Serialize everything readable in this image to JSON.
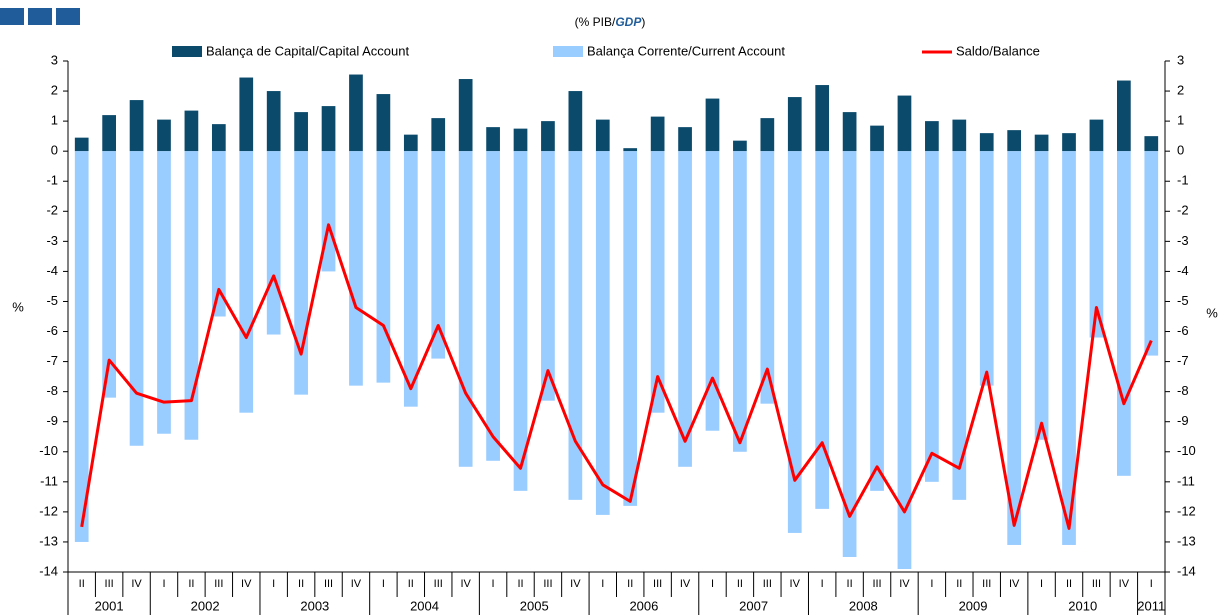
{
  "chart_data": {
    "type": "bar-line",
    "title_parts": [
      "(% PIB/",
      "GDP",
      ")"
    ],
    "y_label": "%",
    "y2_label": "%",
    "categories": [
      "II",
      "III",
      "IV",
      "I",
      "II",
      "III",
      "IV",
      "I",
      "II",
      "III",
      "IV",
      "I",
      "II",
      "III",
      "IV",
      "I",
      "II",
      "III",
      "IV",
      "I",
      "II",
      "III",
      "IV",
      "I",
      "II",
      "III",
      "IV",
      "I",
      "II",
      "III",
      "IV",
      "I",
      "II",
      "III",
      "IV",
      "I",
      "II",
      "III",
      "IV",
      "I"
    ],
    "year_labels": [
      "2001",
      "2002",
      "2003",
      "2004",
      "2005",
      "2006",
      "2007",
      "2008",
      "2009",
      "2010",
      "2011"
    ],
    "series": [
      {
        "name": "Balança de Capital/Capital Account",
        "type": "bar",
        "color": "#0b4a6b",
        "values": [
          0.45,
          1.2,
          1.7,
          1.05,
          1.35,
          0.9,
          2.45,
          2.0,
          1.3,
          1.5,
          2.55,
          1.9,
          0.55,
          1.1,
          2.4,
          0.8,
          0.75,
          1.0,
          2.0,
          1.05,
          0.1,
          1.15,
          0.8,
          1.75,
          0.35,
          1.1,
          1.8,
          2.2,
          1.3,
          0.85,
          1.85,
          1.0,
          1.05,
          0.6,
          0.7,
          0.55,
          0.6,
          1.05,
          2.35,
          0.5
        ]
      },
      {
        "name": "Balança Corrente/Current Account",
        "type": "bar",
        "color": "#99ccff",
        "values": [
          -13.0,
          -8.2,
          -9.8,
          -9.4,
          -9.6,
          -5.5,
          -8.7,
          -6.1,
          -8.1,
          -4.0,
          -7.8,
          -7.7,
          -8.5,
          -6.9,
          -10.5,
          -10.3,
          -11.3,
          -8.3,
          -11.6,
          -12.1,
          -11.8,
          -8.7,
          -10.5,
          -9.3,
          -10.0,
          -8.4,
          -12.7,
          -11.9,
          -13.5,
          -11.3,
          -13.9,
          -11.0,
          -11.6,
          -7.8,
          -13.1,
          -9.6,
          -13.1,
          -6.2,
          -10.8,
          -6.8
        ]
      },
      {
        "name": "Saldo/Balance",
        "type": "line",
        "color": "#ff0000",
        "values": [
          -12.5,
          -6.95,
          -8.05,
          -8.35,
          -8.3,
          -4.6,
          -6.2,
          -4.15,
          -6.75,
          -2.45,
          -5.2,
          -5.8,
          -7.9,
          -5.8,
          -8.05,
          -9.5,
          -10.55,
          -7.3,
          -9.65,
          -11.1,
          -11.65,
          -7.5,
          -9.65,
          -7.55,
          -9.7,
          -7.25,
          -10.95,
          -9.7,
          -12.15,
          -10.5,
          -12.0,
          -10.05,
          -10.55,
          -7.35,
          -12.45,
          -9.05,
          -12.55,
          -5.2,
          -8.4,
          -6.3
        ]
      }
    ],
    "ylim": [
      -14,
      3
    ],
    "yticks": [
      3,
      2,
      1,
      0,
      -1,
      -2,
      -3,
      -4,
      -5,
      -6,
      -7,
      -8,
      -9,
      -10,
      -11,
      -12,
      -13,
      -14
    ],
    "y2lim": [
      -14,
      3
    ],
    "y2ticks": [
      3,
      2,
      1,
      0,
      -1,
      -2,
      -3,
      -4,
      -5,
      -6,
      -7,
      -8,
      -9,
      -10,
      -11,
      -12,
      -13,
      -14
    ],
    "grid": false,
    "legend": "top"
  }
}
